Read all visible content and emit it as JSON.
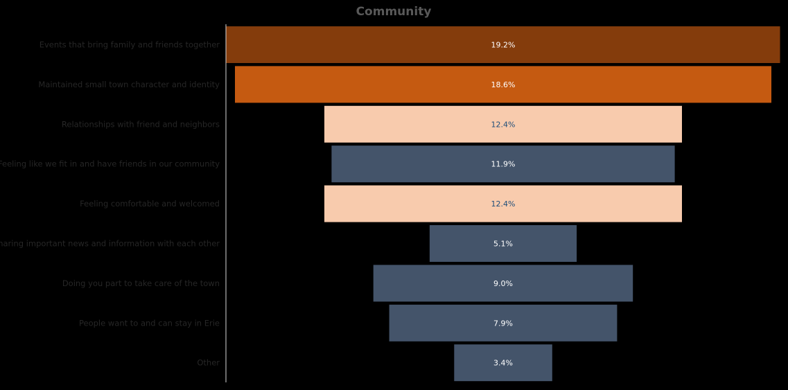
{
  "chart_data": {
    "type": "bar",
    "orientation": "funnel-horizontal",
    "title": "Community",
    "categories": [
      "Events that bring family and friends together",
      "Maintained small town character and identity",
      "Relationships with friend and neighbors",
      "Feeling like we fit in and have friends in our community",
      "Feeling comfortable and welcomed",
      "Sharing important news and information with each other",
      "Doing you part to take care of the town",
      "People want to and can stay in Erie",
      "Other"
    ],
    "values": [
      19.2,
      18.6,
      12.4,
      11.9,
      12.4,
      5.1,
      9.0,
      7.9,
      3.4
    ],
    "value_labels": [
      "19.2%",
      "18.6%",
      "12.4%",
      "11.9%",
      "12.4%",
      "5.1%",
      "9.0%",
      "7.9%",
      "3.4%"
    ],
    "bar_colors": [
      "#843C0C",
      "#C55A11",
      "#F8CBAD",
      "#44546A",
      "#F8CBAD",
      "#44546A",
      "#44546A",
      "#44546A",
      "#44546A"
    ],
    "label_colors": [
      "#FFFFFF",
      "#FFFFFF",
      "#1F4E79",
      "#FFFFFF",
      "#1F4E79",
      "#FFFFFF",
      "#FFFFFF",
      "#FFFFFF",
      "#FFFFFF"
    ],
    "xlabel": "",
    "ylabel": "",
    "grid": false,
    "legend": "none"
  }
}
